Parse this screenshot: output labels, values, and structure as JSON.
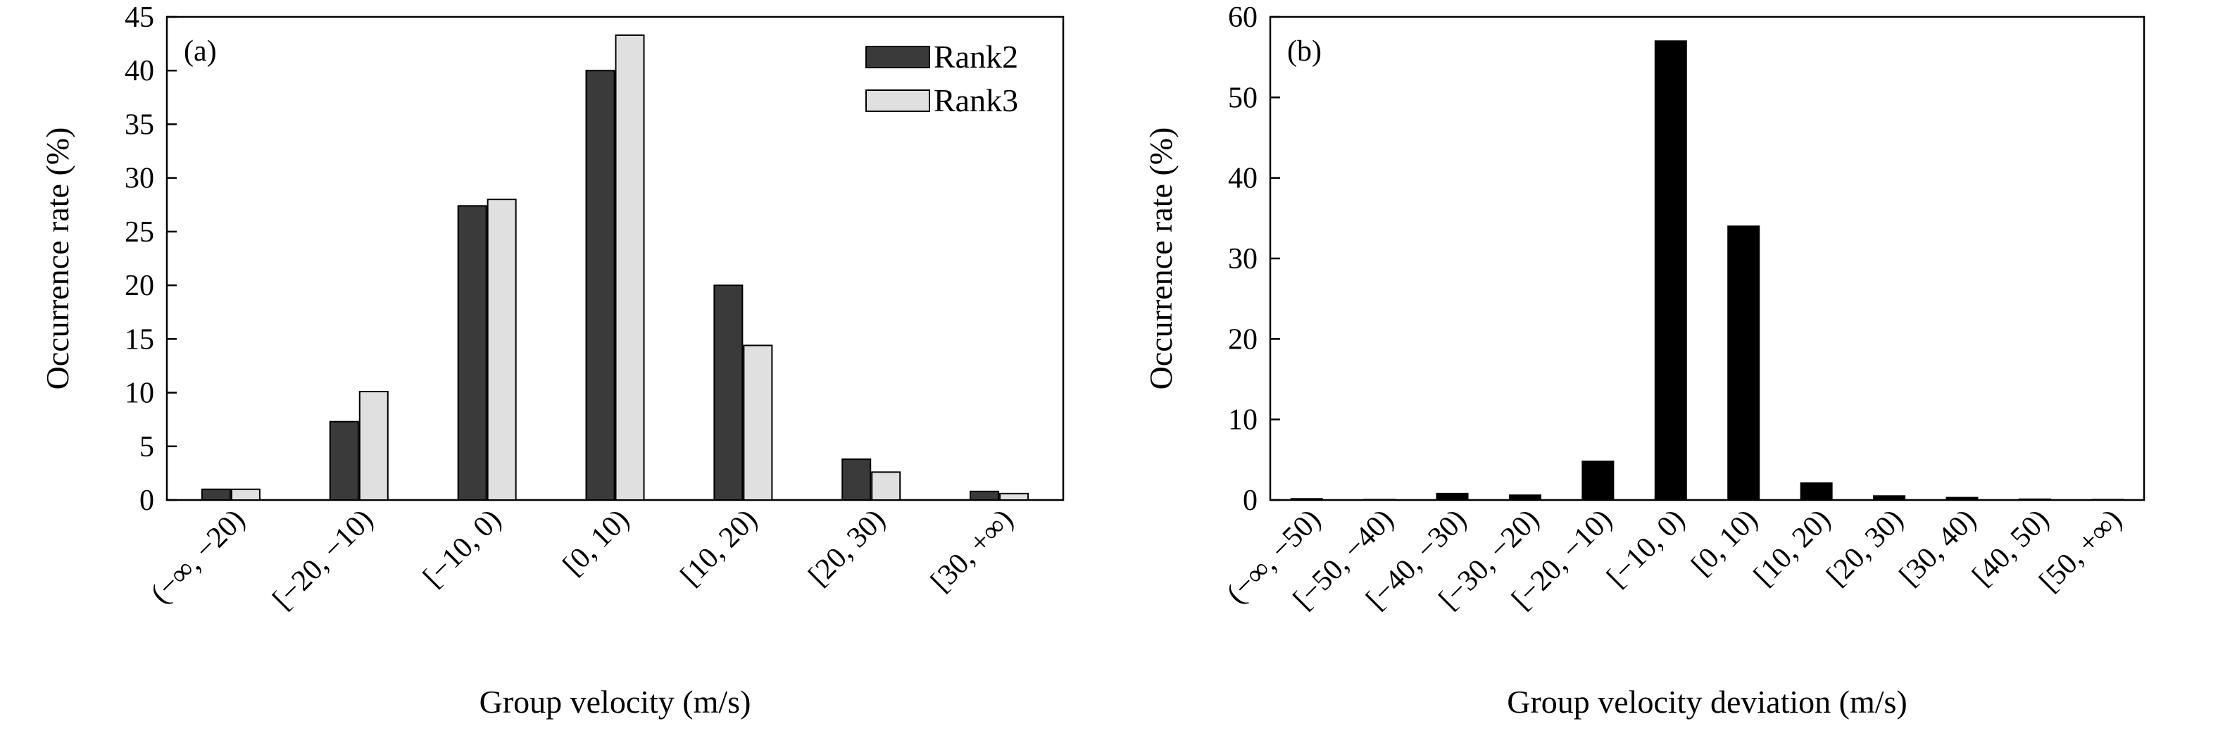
{
  "chart_data": [
    {
      "type": "bar",
      "panel_label": "(a)",
      "xlabel": "Group velocity (m/s)",
      "ylabel": "Occurrence rate (%)",
      "ylim": [
        0,
        45
      ],
      "yticks": [
        0,
        5,
        10,
        15,
        20,
        25,
        30,
        35,
        40,
        45
      ],
      "categories": [
        "(−∞, −20)",
        "[−20, −10)",
        "[−10, 0)",
        "[0, 10)",
        "[10, 20)",
        "[20, 30)",
        "[30, +∞)"
      ],
      "series": [
        {
          "name": "Rank2",
          "color": "#3a3a3a",
          "values": [
            1.0,
            7.3,
            27.4,
            40.0,
            20.0,
            3.8,
            0.8
          ]
        },
        {
          "name": "Rank3",
          "color": "#e0e0e0",
          "values": [
            1.0,
            10.1,
            28.0,
            43.3,
            14.4,
            2.6,
            0.6
          ]
        }
      ],
      "legend_position": "top-right",
      "grid": false
    },
    {
      "type": "bar",
      "panel_label": "(b)",
      "xlabel": "Group velocity deviation (m/s)",
      "ylabel": "Occurrence rate (%)",
      "ylim": [
        0,
        60
      ],
      "yticks": [
        0,
        10,
        20,
        30,
        40,
        50,
        60
      ],
      "categories": [
        "(−∞, −50)",
        "[−50, −40)",
        "[−40, −30)",
        "[−30, −20)",
        "[−20, −10)",
        "[−10, 0)",
        "[0, 10)",
        "[10, 20)",
        "[20, 30)",
        "[30, 40)",
        "[40, 50)",
        "[50, +∞)"
      ],
      "series": [
        {
          "color": "#000000",
          "values": [
            0.15,
            0.05,
            0.8,
            0.6,
            4.8,
            57.0,
            34.0,
            2.1,
            0.5,
            0.3,
            0.1,
            0.05
          ]
        }
      ],
      "grid": false
    }
  ]
}
